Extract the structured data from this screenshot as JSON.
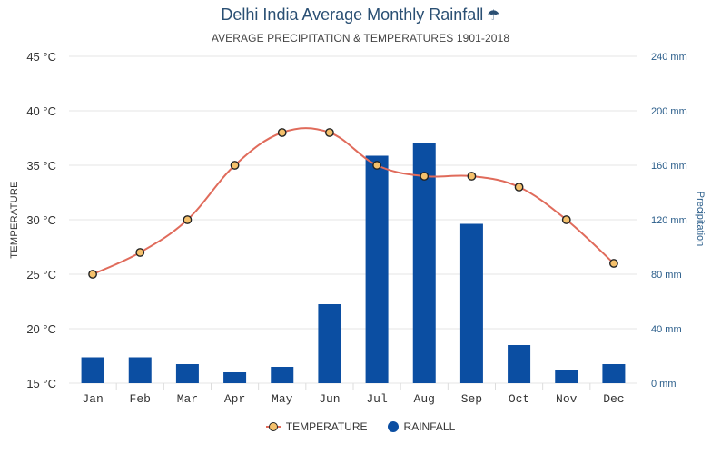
{
  "chart_data": {
    "type": "bar+line",
    "title": "Delhi India Average Monthly Rainfall",
    "title_icon": "umbrella-rain-icon",
    "subtitle": "AVERAGE PRECIPITATION & TEMPERATURES 1901-2018",
    "categories": [
      "Jan",
      "Feb",
      "Mar",
      "Apr",
      "May",
      "Jun",
      "Jul",
      "Aug",
      "Sep",
      "Oct",
      "Nov",
      "Dec"
    ],
    "series": [
      {
        "name": "TEMPERATURE",
        "type": "line",
        "axis": "left",
        "unit": "°C",
        "values": [
          25,
          27,
          30,
          35,
          38,
          38,
          35,
          34,
          34,
          33,
          30,
          26
        ]
      },
      {
        "name": "RAINFALL",
        "type": "bar",
        "axis": "right",
        "unit": "mm",
        "values": [
          19,
          19,
          14,
          8,
          12,
          58,
          167,
          176,
          117,
          28,
          10,
          14
        ]
      }
    ],
    "y_left": {
      "label": "TEMPERATURE",
      "min": 15,
      "max": 45,
      "ticks": [
        "45 °C",
        "40 °C",
        "35 °C",
        "30 °C",
        "25 °C",
        "20 °C",
        "15 °C"
      ]
    },
    "y_right": {
      "label": "Precipitation",
      "min": 0,
      "max": 240,
      "ticks": [
        "240 mm",
        "200 mm",
        "160 mm",
        "120 mm",
        "80 mm",
        "40 mm",
        "0 mm"
      ]
    },
    "legend_position": "bottom-center",
    "grid": true
  },
  "colors": {
    "title": "#2a4f73",
    "bar": "#0b4ea2",
    "line": "#e06b5b",
    "marker_fill": "#f5c16c",
    "marker_stroke": "#222222",
    "right_axis": "#2a5d8a",
    "grid": "#e6e6e6"
  }
}
